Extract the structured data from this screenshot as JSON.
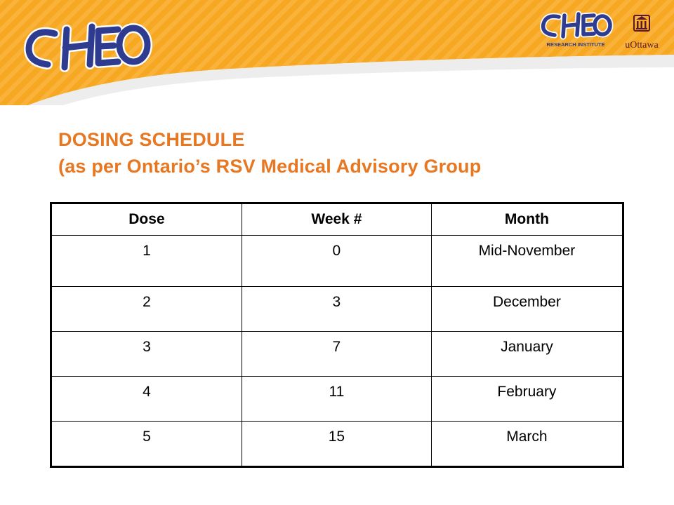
{
  "header": {
    "logo_text": "CHEO",
    "research_logo_text": "CHEO",
    "research_logo_subtitle": "RESEARCH INSTITUTE",
    "university_logo_text": "uOttawa",
    "banner_color": "#f7a823",
    "banner_stripe_color": "#fbbc45"
  },
  "title": {
    "line1": "DOSING SCHEDULE",
    "line2": "(as per Ontario’s RSV Medical Advisory Group",
    "color": "#e87722"
  },
  "table": {
    "columns": [
      "Dose",
      "Week #",
      "Month"
    ],
    "rows": [
      [
        "1",
        "0",
        "Mid-November"
      ],
      [
        "2",
        "3",
        "December"
      ],
      [
        "3",
        "7",
        "January"
      ],
      [
        "4",
        "11",
        "February"
      ],
      [
        "5",
        "15",
        "March"
      ]
    ]
  }
}
